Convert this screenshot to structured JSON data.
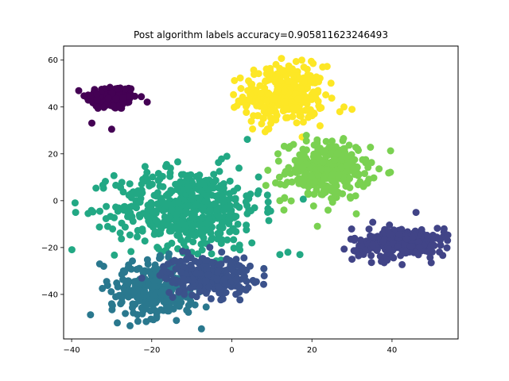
{
  "chart_data": {
    "type": "scatter",
    "title": "Post algorithm labels accuracy=0.905811623246493",
    "xlabel": "",
    "ylabel": "",
    "xlim": [
      -42,
      56.5
    ],
    "ylim": [
      -59,
      66
    ],
    "xticks": [
      -40,
      -20,
      0,
      20,
      40
    ],
    "xtick_labels": [
      "−40",
      "−20",
      "0",
      "20",
      "40"
    ],
    "yticks": [
      -40,
      -20,
      0,
      20,
      40,
      60
    ],
    "ytick_labels": [
      "−40",
      "−20",
      "0",
      "20",
      "40",
      "60"
    ],
    "grid": false,
    "legend": "none",
    "clusters": [
      {
        "color": "#440154",
        "center": [
          -30,
          44
        ],
        "spread": [
          3.2,
          2.6
        ],
        "count": 180,
        "extra_points": [
          [
            -30,
            30.5
          ]
        ]
      },
      {
        "color": "#fde725",
        "center": [
          13,
          45
        ],
        "spread": [
          5.0,
          6.2
        ],
        "count": 300,
        "extra_points": [
          [
            4,
            47
          ],
          [
            18,
            57
          ],
          [
            28,
            40
          ],
          [
            30,
            39
          ]
        ]
      },
      {
        "color": "#7ad151",
        "center": [
          24,
          13
        ],
        "spread": [
          5.2,
          6.2
        ],
        "count": 300,
        "extra_points": [
          [
            9,
            13
          ],
          [
            12,
            0
          ],
          [
            13,
            -4
          ],
          [
            8.5,
            6.5
          ]
        ]
      },
      {
        "color": "#22a884",
        "center": [
          -11,
          -3
        ],
        "spread": [
          9.0,
          8.5
        ],
        "count": 520,
        "extra_points": [
          [
            -39,
            -5
          ],
          [
            -31,
            -11
          ],
          [
            -10,
            -22
          ],
          [
            8,
            -29
          ],
          [
            12,
            -23
          ],
          [
            14,
            -22
          ],
          [
            17,
            -23
          ],
          [
            2,
            -21
          ],
          [
            5,
            -18
          ]
        ]
      },
      {
        "color": "#2a788e",
        "center": [
          -19,
          -38
        ],
        "spread": [
          5.5,
          5.8
        ],
        "count": 300,
        "extra_points": [
          [
            -32,
            -28
          ],
          [
            -29,
            -41
          ],
          [
            -30,
            -44
          ],
          [
            -33,
            -27
          ]
        ]
      },
      {
        "color": "#3b528b",
        "center": [
          -6,
          -32
        ],
        "spread": [
          5.5,
          4.2
        ],
        "count": 260,
        "extra_points": [
          [
            -12,
            -28
          ],
          [
            8,
            -29
          ]
        ]
      },
      {
        "color": "#414487",
        "center": [
          42,
          -18
        ],
        "spread": [
          6.0,
          3.2
        ],
        "count": 260,
        "extra_points": [
          [
            30,
            -25
          ],
          [
            53,
            -12
          ],
          [
            46,
            -5
          ]
        ]
      }
    ]
  }
}
